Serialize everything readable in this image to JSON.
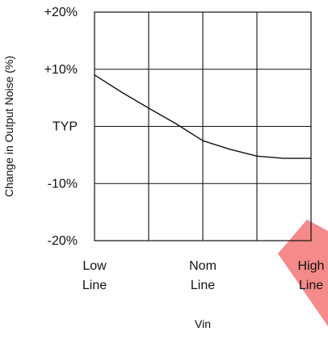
{
  "chart_data": {
    "type": "line",
    "title": "",
    "xlabel": "Vin",
    "ylabel": "Change in Output Noise (%)",
    "xlim": [
      0,
      4
    ],
    "ylim": [
      -20,
      20
    ],
    "x_ticks": [
      {
        "value": 0,
        "lines": [
          "Low",
          "Line"
        ]
      },
      {
        "value": 2,
        "lines": [
          "Nom",
          "Line"
        ]
      },
      {
        "value": 4,
        "lines": [
          "High",
          "Line"
        ]
      }
    ],
    "y_ticks": [
      {
        "value": 20,
        "label": "+20%"
      },
      {
        "value": 10,
        "label": "+10%"
      },
      {
        "value": 0,
        "label": "TYP"
      },
      {
        "value": -10,
        "label": "-10%"
      },
      {
        "value": -20,
        "label": "-20%"
      }
    ],
    "grid": true,
    "series": [
      {
        "x": [
          0,
          0.5,
          1.0,
          1.5,
          2.0,
          2.5,
          3.0,
          3.5,
          4.0
        ],
        "y": [
          9,
          6,
          3.2,
          0.5,
          -2.5,
          -4,
          -5.2,
          -5.6,
          -5.6
        ],
        "color": "#111111"
      }
    ]
  },
  "watermark": {
    "color": "#f2706f"
  }
}
